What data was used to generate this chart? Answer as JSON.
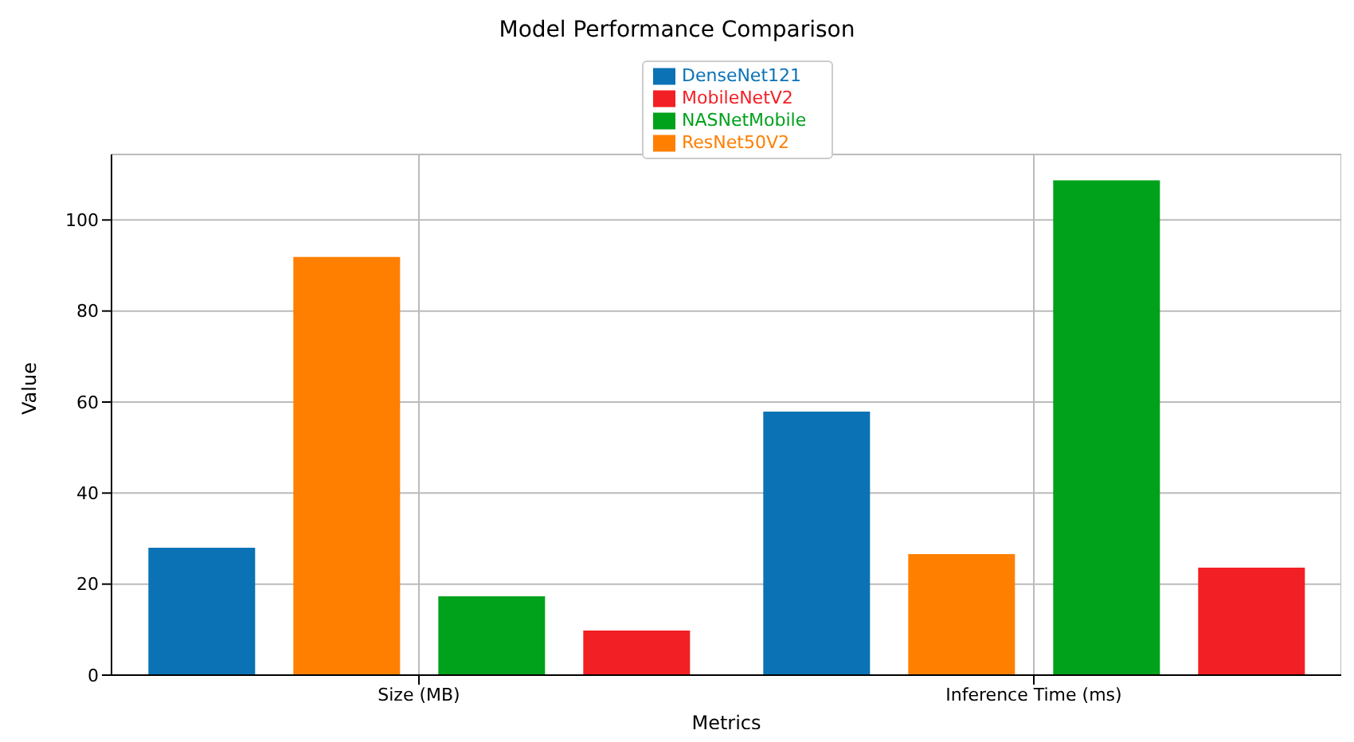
{
  "chart_data": {
    "type": "bar",
    "title": "Model Performance Comparison",
    "xlabel": "Metrics",
    "ylabel": "Value",
    "categories": [
      "Size (MB)",
      "Inference Time (ms)"
    ],
    "series": [
      {
        "name": "DenseNet121",
        "color": "#0a72b5",
        "values": [
          28,
          57.9
        ]
      },
      {
        "name": "ResNet50V2",
        "color": "#ff7f00",
        "values": [
          91.9,
          26.6
        ]
      },
      {
        "name": "NASNetMobile",
        "color": "#00a11b",
        "values": [
          17.3,
          108.7
        ]
      },
      {
        "name": "MobileNetV2",
        "color": "#f21f24",
        "values": [
          9.8,
          23.6
        ]
      }
    ],
    "ylim": [
      0,
      114.4
    ],
    "yticks": [
      0,
      20,
      40,
      60,
      80,
      100
    ],
    "grid": true,
    "legend": "top"
  }
}
